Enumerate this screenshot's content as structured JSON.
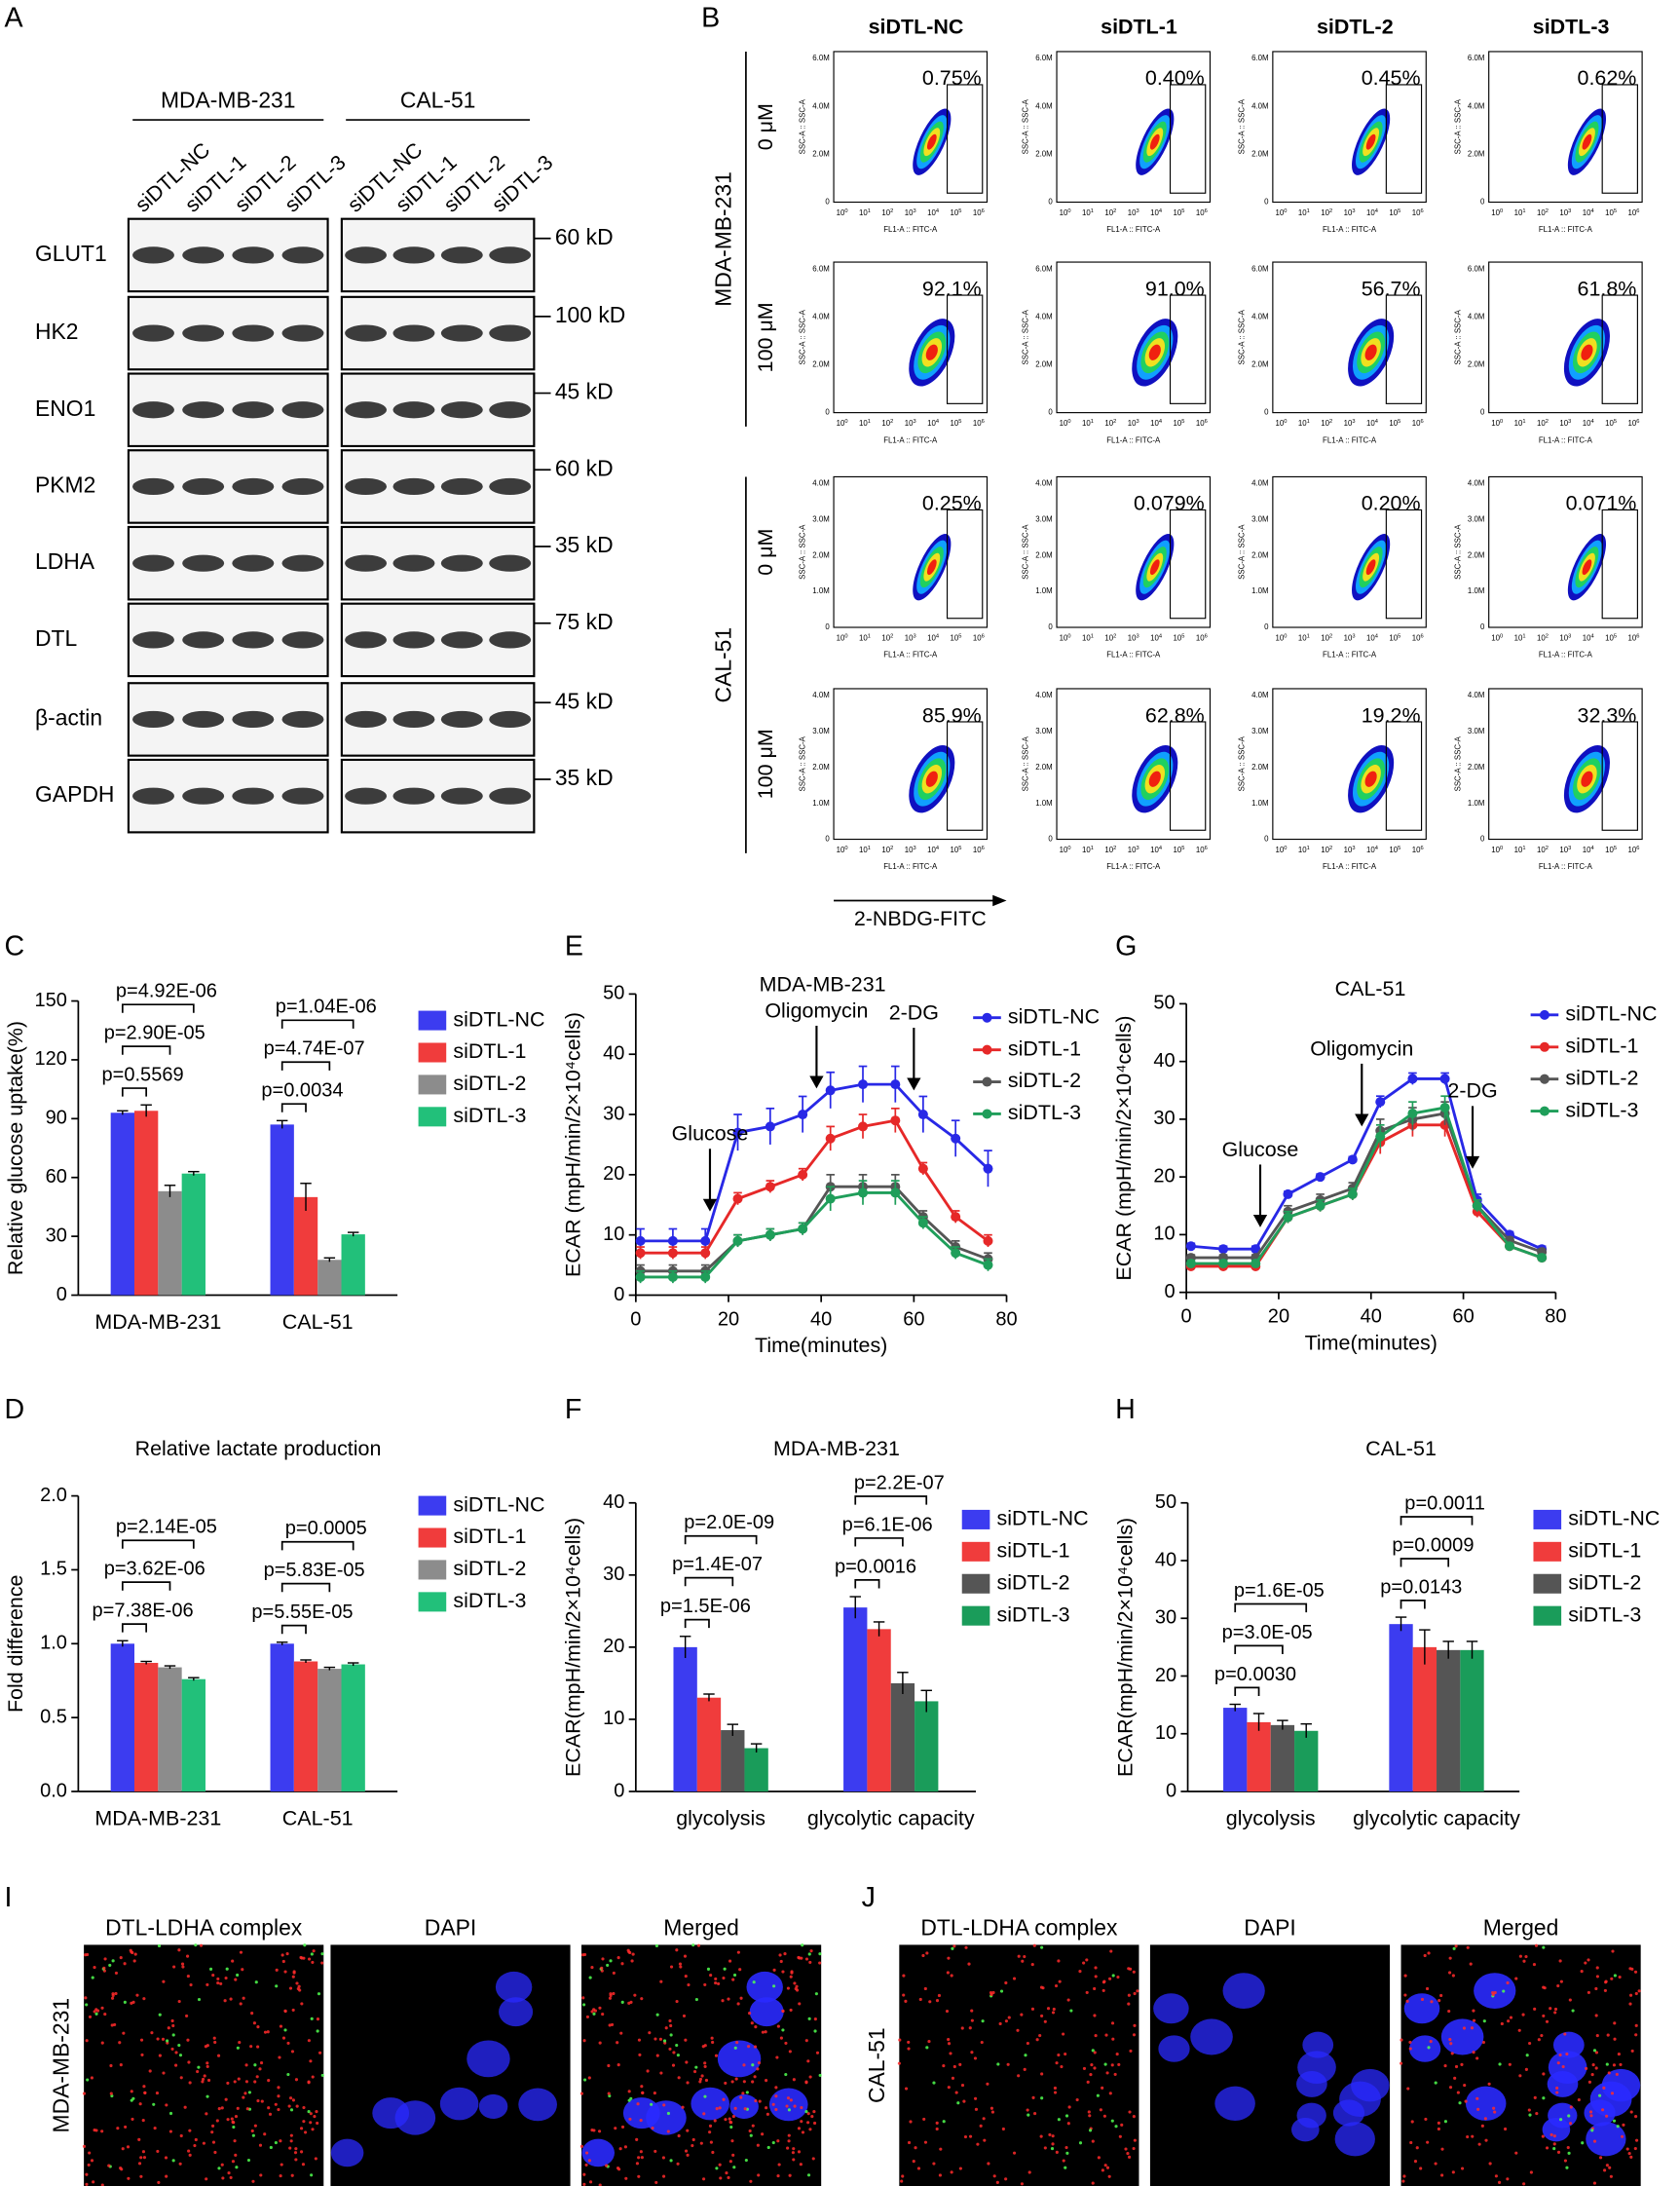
{
  "panel_labels": [
    "A",
    "B",
    "C",
    "D",
    "E",
    "F",
    "G",
    "H",
    "I",
    "J"
  ],
  "blot": {
    "groups": [
      "MDA-MB-231",
      "CAL-51"
    ],
    "lanes": [
      "siDTL-NC",
      "siDTL-1",
      "siDTL-2",
      "siDTL-3"
    ],
    "rows": [
      {
        "protein": "GLUT1",
        "size": "60 kD"
      },
      {
        "protein": "HK2",
        "size": "100 kD"
      },
      {
        "protein": "ENO1",
        "size": "45 kD"
      },
      {
        "protein": "PKM2",
        "size": "60 kD"
      },
      {
        "protein": "LDHA",
        "size": "35 kD"
      },
      {
        "protein": "DTL",
        "size": "75 kD"
      },
      {
        "protein": "β-actin",
        "size": "45 kD"
      },
      {
        "protein": "GAPDH",
        "size": "35 kD"
      }
    ]
  },
  "flow": {
    "columns": [
      "siDTL-NC",
      "siDTL-1",
      "siDTL-2",
      "siDTL-3"
    ],
    "cell_lines": [
      {
        "name": "MDA-MB-231",
        "y_ticks": [
          "6.0M",
          "4.0M",
          "2.0M",
          "0"
        ]
      },
      {
        "name": "CAL-51",
        "y_ticks": [
          "4.0M",
          "3.0M",
          "2.0M",
          "1.0M",
          "0"
        ]
      }
    ],
    "doses": [
      "0 μM",
      "100 μM"
    ],
    "gated": [
      [
        [
          "0.75%",
          "0.40%",
          "0.45%",
          "0.62%"
        ],
        [
          "92.1%",
          "91.0%",
          "56.7%",
          "61.8%"
        ]
      ],
      [
        [
          "0.25%",
          "0.079%",
          "0.20%",
          "0.071%"
        ],
        [
          "85.9%",
          "62.8%",
          "19.2%",
          "32.3%"
        ]
      ]
    ],
    "y_axis": "SSC-A :: SSC-A",
    "x_axis": "FL1-A :: FITC-A",
    "x_tick_base": "10",
    "x_tick_exponents": [
      "0",
      "1",
      "2",
      "3",
      "4",
      "5",
      "6"
    ],
    "xlabel": "2-NBDG-FITC"
  },
  "chart_data": [
    {
      "type": "bar",
      "ylabel": "Relative glucose uptake(%)",
      "categories": [
        "MDA-MB-231",
        "CAL-51"
      ],
      "series": [
        {
          "name": "siDTL-NC",
          "color": "#3c3cf0",
          "values": [
            93,
            87
          ],
          "errors": [
            1,
            2
          ]
        },
        {
          "name": "siDTL-1",
          "color": "#f03c3c",
          "values": [
            94,
            50
          ],
          "errors": [
            3,
            7
          ]
        },
        {
          "name": "siDTL-2",
          "color": "#8c8c8c",
          "values": [
            53,
            18
          ],
          "errors": [
            3,
            1
          ]
        },
        {
          "name": "siDTL-3",
          "color": "#22c07a",
          "values": [
            62,
            31
          ],
          "errors": [
            1,
            1
          ]
        }
      ],
      "ylim": [
        0,
        150
      ],
      "yticks": [
        0,
        30,
        60,
        90,
        120,
        150
      ],
      "annotations": [
        [
          "p=0.5569",
          "p=2.90E-05",
          "p=4.92E-06"
        ],
        [
          "p=0.0034",
          "p=4.74E-07",
          "p=1.04E-06"
        ]
      ],
      "legend": "right"
    },
    {
      "type": "bar",
      "title": "Relative lactate production",
      "ylabel": "Fold difference",
      "categories": [
        "MDA-MB-231",
        "CAL-51"
      ],
      "series": [
        {
          "name": "siDTL-NC",
          "color": "#3c3cf0",
          "values": [
            1.0,
            1.0
          ],
          "errors": [
            0.02,
            0.01
          ]
        },
        {
          "name": "siDTL-1",
          "color": "#f03c3c",
          "values": [
            0.87,
            0.88
          ],
          "errors": [
            0.01,
            0.01
          ]
        },
        {
          "name": "siDTL-2",
          "color": "#8c8c8c",
          "values": [
            0.84,
            0.83
          ],
          "errors": [
            0.01,
            0.01
          ]
        },
        {
          "name": "siDTL-3",
          "color": "#22c07a",
          "values": [
            0.76,
            0.86
          ],
          "errors": [
            0.01,
            0.01
          ]
        }
      ],
      "ylim": [
        0,
        2
      ],
      "yticks": [
        {
          "value": 0,
          "label": "0.0"
        },
        {
          "value": 0.5,
          "label": "0.5"
        },
        {
          "value": 1,
          "label": "1.0"
        },
        {
          "value": 1.5,
          "label": "1.5"
        },
        {
          "value": 2,
          "label": "2.0"
        }
      ],
      "annotations": [
        [
          "p=7.38E-06",
          "p=3.62E-06",
          "p=2.14E-05"
        ],
        [
          "p=5.55E-05",
          "p=5.83E-05",
          "p=0.0005"
        ]
      ],
      "legend": "right"
    },
    {
      "type": "line",
      "title": "MDA-MB-231",
      "xlabel": "Time(minutes)",
      "ylabel": "ECAR (mpH/min/2×10⁴cells)",
      "x": [
        1,
        8,
        15,
        22,
        29,
        36,
        42,
        49,
        56,
        62,
        69,
        76
      ],
      "series": [
        {
          "name": "siDTL-NC",
          "color": "#2828e6",
          "values": [
            9,
            9,
            9,
            27,
            28,
            30,
            34,
            35,
            35,
            30,
            26,
            21
          ],
          "errors": [
            2,
            2,
            2,
            3,
            3,
            3,
            3,
            3,
            3,
            3,
            3,
            3
          ]
        },
        {
          "name": "siDTL-1",
          "color": "#e62828",
          "values": [
            7,
            7,
            7,
            16,
            18,
            20,
            26,
            28,
            29,
            21,
            13,
            9
          ],
          "errors": [
            1,
            1,
            1,
            1,
            1,
            1,
            2,
            2,
            2,
            1,
            1,
            1
          ]
        },
        {
          "name": "siDTL-2",
          "color": "#555555",
          "values": [
            4,
            4,
            4,
            9,
            10,
            11,
            18,
            18,
            18,
            13,
            8,
            6
          ],
          "errors": [
            1,
            1,
            1,
            1,
            1,
            1,
            2,
            2,
            2,
            1,
            1,
            1
          ]
        },
        {
          "name": "siDTL-3",
          "color": "#1f9e5a",
          "values": [
            3,
            3,
            3,
            9,
            10,
            11,
            16,
            17,
            17,
            12,
            7,
            5
          ],
          "errors": [
            1,
            1,
            1,
            1,
            1,
            1,
            2,
            2,
            2,
            1,
            1,
            1
          ]
        }
      ],
      "xlim": [
        0,
        80
      ],
      "xticks": [
        0,
        20,
        40,
        60,
        80
      ],
      "ylim": [
        0,
        50
      ],
      "yticks": [
        0,
        10,
        20,
        30,
        40,
        50
      ],
      "events": [
        {
          "text": "Glucose",
          "x": 16
        },
        {
          "text": "Oligomycin",
          "x": 39
        },
        {
          "text": "2-DG",
          "x": 60
        }
      ],
      "legend": "right"
    },
    {
      "type": "bar",
      "title": "MDA-MB-231",
      "ylabel": "ECAR(mpH/min/2×10⁴cells)",
      "categories": [
        "glycolysis",
        "glycolytic capacity"
      ],
      "series": [
        {
          "name": "siDTL-NC",
          "color": "#3c3cf0",
          "values": [
            20,
            25.5
          ],
          "errors": [
            1.5,
            1.5
          ]
        },
        {
          "name": "siDTL-1",
          "color": "#f03c3c",
          "values": [
            13,
            22.5
          ],
          "errors": [
            0.5,
            1
          ]
        },
        {
          "name": "siDTL-2",
          "color": "#555555",
          "values": [
            8.5,
            15
          ],
          "errors": [
            0.8,
            1.5
          ]
        },
        {
          "name": "siDTL-3",
          "color": "#1a9c5a",
          "values": [
            6,
            12.5
          ],
          "errors": [
            0.6,
            1.5
          ]
        }
      ],
      "ylim": [
        0,
        40
      ],
      "yticks": [
        0,
        10,
        20,
        30,
        40
      ],
      "annotations": [
        [
          "p=1.5E-06",
          "p=1.4E-07",
          "p=2.0E-09"
        ],
        [
          "p=0.0016",
          "p=6.1E-06",
          "p=2.2E-07"
        ]
      ],
      "legend": "right"
    },
    {
      "type": "line",
      "title": "CAL-51",
      "xlabel": "Time(minutes)",
      "ylabel": "ECAR (mpH/min/2×10⁴cells)",
      "x": [
        1,
        8,
        15,
        22,
        29,
        36,
        42,
        49,
        56,
        63,
        70,
        77
      ],
      "series": [
        {
          "name": "siDTL-NC",
          "color": "#2828e6",
          "values": [
            8,
            7.5,
            7.5,
            17,
            20,
            23,
            33,
            37,
            37,
            16,
            10,
            7.5
          ],
          "errors": [
            0.5,
            0.5,
            0.5,
            0.5,
            0.5,
            0.5,
            1,
            1,
            1,
            1,
            0.5,
            0.5
          ]
        },
        {
          "name": "siDTL-1",
          "color": "#e62828",
          "values": [
            4.5,
            4.5,
            4.5,
            13,
            15,
            17,
            26,
            29,
            29,
            14,
            8,
            6
          ],
          "errors": [
            0.5,
            0.5,
            0.5,
            1,
            1,
            1,
            2,
            2,
            2,
            1,
            0.5,
            0.5
          ]
        },
        {
          "name": "siDTL-2",
          "color": "#555555",
          "values": [
            6,
            6,
            6,
            14,
            16,
            18,
            28,
            30,
            31,
            15,
            9,
            7
          ],
          "errors": [
            0.5,
            0.5,
            0.5,
            1,
            1,
            1,
            2,
            2,
            2,
            1,
            0.5,
            0.5
          ]
        },
        {
          "name": "siDTL-3",
          "color": "#1f9e5a",
          "values": [
            5,
            5,
            5,
            13,
            15,
            17,
            27,
            31,
            32,
            15,
            8,
            6
          ],
          "errors": [
            0.5,
            0.5,
            0.5,
            1,
            1,
            1,
            2,
            2,
            2,
            1,
            0.5,
            0.5
          ]
        }
      ],
      "xlim": [
        0,
        80
      ],
      "xticks": [
        0,
        20,
        40,
        60,
        80
      ],
      "ylim": [
        0,
        50
      ],
      "yticks": [
        0,
        10,
        20,
        30,
        40,
        50
      ],
      "events": [
        {
          "text": "Glucose",
          "x": 16
        },
        {
          "text": "Oligomycin",
          "x": 38
        },
        {
          "text": "2-DG",
          "x": 62
        }
      ],
      "legend": "right"
    },
    {
      "type": "bar",
      "title": "CAL-51",
      "ylabel": "ECAR(mpH/min/2×10⁴cells)",
      "categories": [
        "glycolysis",
        "glycolytic capacity"
      ],
      "series": [
        {
          "name": "siDTL-NC",
          "color": "#3c3cf0",
          "values": [
            14.5,
            29
          ],
          "errors": [
            0.6,
            1.2
          ]
        },
        {
          "name": "siDTL-1",
          "color": "#f03c3c",
          "values": [
            12,
            25
          ],
          "errors": [
            1.5,
            3
          ]
        },
        {
          "name": "siDTL-2",
          "color": "#555555",
          "values": [
            11.5,
            24.5
          ],
          "errors": [
            0.8,
            1.5
          ]
        },
        {
          "name": "siDTL-3",
          "color": "#1a9c5a",
          "values": [
            10.5,
            24.5
          ],
          "errors": [
            1.2,
            1.5
          ]
        }
      ],
      "ylim": [
        0,
        50
      ],
      "yticks": [
        0,
        10,
        20,
        30,
        40,
        50
      ],
      "annotations": [
        [
          "p=0.0030",
          "p=3.0E-05",
          "p=1.6E-05"
        ],
        [
          "p=0.0143",
          "p=0.0009",
          "p=0.0011"
        ]
      ],
      "legend": "right"
    }
  ],
  "imaging": [
    {
      "cell_line": "MDA-MB-231",
      "channels": [
        "DTL-LDHA complex",
        "DAPI",
        "Merged"
      ]
    },
    {
      "cell_line": "CAL-51",
      "channels": [
        "DTL-LDHA complex",
        "DAPI",
        "Merged"
      ]
    }
  ]
}
